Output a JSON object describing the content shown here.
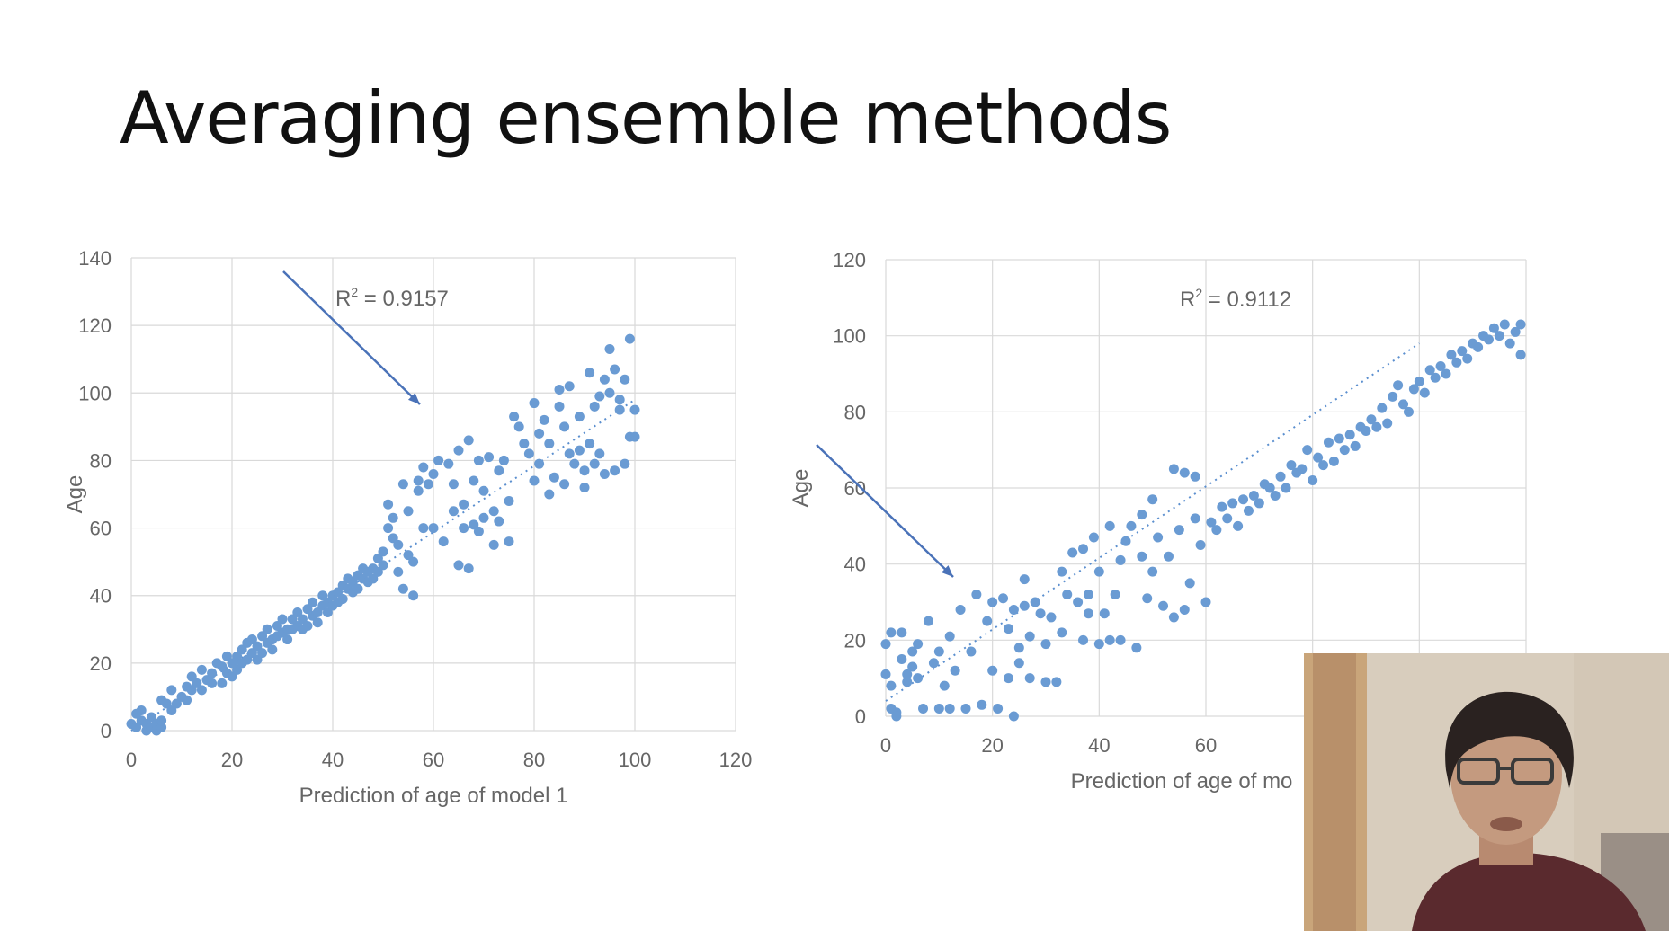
{
  "slide": {
    "title": "Averaging ensemble methods"
  },
  "chart_data": [
    {
      "type": "scatter",
      "xlabel": "Prediction of age of model 1",
      "ylabel": "Age",
      "xlim": [
        0,
        120
      ],
      "ylim": [
        0,
        140
      ],
      "xticks": [
        "0",
        "20",
        "40",
        "60",
        "80",
        "100",
        "120"
      ],
      "yticks": [
        "0",
        "20",
        "40",
        "60",
        "80",
        "100",
        "120",
        "140"
      ],
      "grid": true,
      "trendline": {
        "style": "dotted-linear",
        "x": [
          0,
          100
        ],
        "y": [
          0,
          98
        ]
      },
      "annotation": "R² = 0.9157",
      "points": [
        [
          0,
          2
        ],
        [
          1,
          5
        ],
        [
          1,
          1
        ],
        [
          2,
          3
        ],
        [
          2,
          6
        ],
        [
          3,
          0
        ],
        [
          3,
          2
        ],
        [
          4,
          1
        ],
        [
          4,
          4
        ],
        [
          5,
          2
        ],
        [
          5,
          0
        ],
        [
          6,
          1
        ],
        [
          6,
          3
        ],
        [
          6,
          9
        ],
        [
          7,
          8
        ],
        [
          8,
          6
        ],
        [
          8,
          12
        ],
        [
          9,
          8
        ],
        [
          10,
          10
        ],
        [
          11,
          9
        ],
        [
          11,
          13
        ],
        [
          12,
          12
        ],
        [
          12,
          16
        ],
        [
          13,
          14
        ],
        [
          14,
          18
        ],
        [
          14,
          12
        ],
        [
          15,
          15
        ],
        [
          16,
          17
        ],
        [
          16,
          14
        ],
        [
          17,
          20
        ],
        [
          18,
          19
        ],
        [
          18,
          14
        ],
        [
          19,
          17
        ],
        [
          19,
          22
        ],
        [
          20,
          20
        ],
        [
          20,
          16
        ],
        [
          21,
          22
        ],
        [
          21,
          18
        ],
        [
          22,
          24
        ],
        [
          22,
          20
        ],
        [
          23,
          26
        ],
        [
          23,
          21
        ],
        [
          24,
          23
        ],
        [
          24,
          27
        ],
        [
          25,
          25
        ],
        [
          25,
          21
        ],
        [
          26,
          28
        ],
        [
          26,
          23
        ],
        [
          27,
          26
        ],
        [
          27,
          30
        ],
        [
          28,
          27
        ],
        [
          28,
          24
        ],
        [
          29,
          31
        ],
        [
          29,
          28
        ],
        [
          30,
          29
        ],
        [
          30,
          33
        ],
        [
          31,
          30
        ],
        [
          31,
          27
        ],
        [
          32,
          33
        ],
        [
          32,
          30
        ],
        [
          33,
          31
        ],
        [
          33,
          35
        ],
        [
          34,
          33
        ],
        [
          34,
          30
        ],
        [
          35,
          36
        ],
        [
          35,
          31
        ],
        [
          36,
          34
        ],
        [
          36,
          38
        ],
        [
          37,
          35
        ],
        [
          37,
          32
        ],
        [
          38,
          37
        ],
        [
          38,
          40
        ],
        [
          39,
          38
        ],
        [
          39,
          35
        ],
        [
          40,
          40
        ],
        [
          40,
          37
        ],
        [
          41,
          41
        ],
        [
          41,
          38
        ],
        [
          42,
          43
        ],
        [
          42,
          39
        ],
        [
          43,
          42
        ],
        [
          43,
          45
        ],
        [
          44,
          44
        ],
        [
          44,
          41
        ],
        [
          45,
          46
        ],
        [
          45,
          42
        ],
        [
          46,
          45
        ],
        [
          46,
          48
        ],
        [
          47,
          47
        ],
        [
          47,
          44
        ],
        [
          48,
          48
        ],
        [
          48,
          45
        ],
        [
          49,
          51
        ],
        [
          49,
          47
        ],
        [
          50,
          53
        ],
        [
          50,
          49
        ],
        [
          51,
          67
        ],
        [
          51,
          60
        ],
        [
          52,
          57
        ],
        [
          52,
          63
        ],
        [
          53,
          55
        ],
        [
          53,
          47
        ],
        [
          54,
          42
        ],
        [
          54,
          73
        ],
        [
          55,
          65
        ],
        [
          55,
          52
        ],
        [
          56,
          40
        ],
        [
          56,
          50
        ],
        [
          57,
          71
        ],
        [
          57,
          74
        ],
        [
          58,
          60
        ],
        [
          58,
          78
        ],
        [
          59,
          73
        ],
        [
          60,
          76
        ],
        [
          60,
          60
        ],
        [
          61,
          80
        ],
        [
          62,
          56
        ],
        [
          63,
          79
        ],
        [
          64,
          73
        ],
        [
          64,
          65
        ],
        [
          65,
          83
        ],
        [
          65,
          49
        ],
        [
          66,
          60
        ],
        [
          66,
          67
        ],
        [
          67,
          48
        ],
        [
          67,
          86
        ],
        [
          68,
          61
        ],
        [
          68,
          74
        ],
        [
          69,
          80
        ],
        [
          69,
          59
        ],
        [
          70,
          71
        ],
        [
          70,
          63
        ],
        [
          71,
          81
        ],
        [
          72,
          55
        ],
        [
          72,
          65
        ],
        [
          73,
          77
        ],
        [
          73,
          62
        ],
        [
          74,
          80
        ],
        [
          75,
          56
        ],
        [
          75,
          68
        ],
        [
          76,
          93
        ],
        [
          77,
          90
        ],
        [
          78,
          85
        ],
        [
          79,
          82
        ],
        [
          80,
          74
        ],
        [
          80,
          97
        ],
        [
          81,
          79
        ],
        [
          81,
          88
        ],
        [
          82,
          92
        ],
        [
          83,
          85
        ],
        [
          83,
          70
        ],
        [
          84,
          75
        ],
        [
          85,
          101
        ],
        [
          85,
          96
        ],
        [
          86,
          90
        ],
        [
          86,
          73
        ],
        [
          87,
          82
        ],
        [
          87,
          102
        ],
        [
          88,
          79
        ],
        [
          89,
          93
        ],
        [
          89,
          83
        ],
        [
          90,
          77
        ],
        [
          90,
          72
        ],
        [
          91,
          85
        ],
        [
          91,
          106
        ],
        [
          92,
          96
        ],
        [
          92,
          79
        ],
        [
          93,
          99
        ],
        [
          93,
          82
        ],
        [
          94,
          104
        ],
        [
          94,
          76
        ],
        [
          95,
          100
        ],
        [
          95,
          113
        ],
        [
          96,
          77
        ],
        [
          96,
          107
        ],
        [
          97,
          95
        ],
        [
          97,
          98
        ],
        [
          98,
          104
        ],
        [
          98,
          79
        ],
        [
          99,
          116
        ],
        [
          99,
          87
        ],
        [
          100,
          95
        ],
        [
          100,
          87
        ]
      ]
    },
    {
      "type": "scatter",
      "xlabel": "Prediction of age of mo",
      "ylabel": "Age",
      "xlim": [
        0,
        120
      ],
      "ylim": [
        0,
        120
      ],
      "xticks": [
        "0",
        "20",
        "40",
        "60"
      ],
      "yticks": [
        "0",
        "20",
        "40",
        "60",
        "80",
        "100",
        "120"
      ],
      "grid": true,
      "trendline": {
        "style": "dotted-linear",
        "x": [
          0,
          100
        ],
        "y": [
          4,
          98
        ]
      },
      "annotation": "R² = 0.9112",
      "points": [
        [
          0,
          19
        ],
        [
          0,
          11
        ],
        [
          1,
          22
        ],
        [
          1,
          8
        ],
        [
          1,
          2
        ],
        [
          2,
          1
        ],
        [
          2,
          0
        ],
        [
          3,
          15
        ],
        [
          3,
          22
        ],
        [
          4,
          11
        ],
        [
          4,
          9
        ],
        [
          5,
          13
        ],
        [
          5,
          17
        ],
        [
          6,
          10
        ],
        [
          6,
          19
        ],
        [
          7,
          2
        ],
        [
          8,
          25
        ],
        [
          9,
          14
        ],
        [
          10,
          17
        ],
        [
          10,
          2
        ],
        [
          11,
          8
        ],
        [
          12,
          21
        ],
        [
          12,
          2
        ],
        [
          13,
          12
        ],
        [
          14,
          28
        ],
        [
          15,
          2
        ],
        [
          16,
          17
        ],
        [
          17,
          32
        ],
        [
          18,
          3
        ],
        [
          19,
          25
        ],
        [
          20,
          12
        ],
        [
          20,
          30
        ],
        [
          21,
          2
        ],
        [
          22,
          31
        ],
        [
          23,
          23
        ],
        [
          23,
          10
        ],
        [
          24,
          28
        ],
        [
          24,
          0
        ],
        [
          25,
          14
        ],
        [
          25,
          18
        ],
        [
          26,
          29
        ],
        [
          26,
          36
        ],
        [
          27,
          21
        ],
        [
          27,
          10
        ],
        [
          28,
          30
        ],
        [
          29,
          27
        ],
        [
          30,
          19
        ],
        [
          30,
          9
        ],
        [
          31,
          26
        ],
        [
          32,
          9
        ],
        [
          33,
          22
        ],
        [
          33,
          38
        ],
        [
          34,
          32
        ],
        [
          35,
          43
        ],
        [
          36,
          30
        ],
        [
          37,
          44
        ],
        [
          37,
          20
        ],
        [
          38,
          32
        ],
        [
          38,
          27
        ],
        [
          39,
          47
        ],
        [
          40,
          19
        ],
        [
          40,
          38
        ],
        [
          41,
          27
        ],
        [
          42,
          50
        ],
        [
          42,
          20
        ],
        [
          43,
          32
        ],
        [
          44,
          41
        ],
        [
          44,
          20
        ],
        [
          45,
          46
        ],
        [
          46,
          50
        ],
        [
          47,
          18
        ],
        [
          48,
          42
        ],
        [
          48,
          53
        ],
        [
          49,
          31
        ],
        [
          50,
          38
        ],
        [
          50,
          57
        ],
        [
          51,
          47
        ],
        [
          52,
          29
        ],
        [
          53,
          42
        ],
        [
          54,
          65
        ],
        [
          54,
          26
        ],
        [
          55,
          49
        ],
        [
          56,
          64
        ],
        [
          56,
          28
        ],
        [
          57,
          35
        ],
        [
          58,
          52
        ],
        [
          58,
          63
        ],
        [
          59,
          45
        ],
        [
          60,
          30
        ],
        [
          61,
          51
        ],
        [
          62,
          49
        ],
        [
          63,
          55
        ],
        [
          64,
          52
        ],
        [
          65,
          56
        ],
        [
          66,
          50
        ],
        [
          67,
          57
        ],
        [
          68,
          54
        ],
        [
          69,
          58
        ],
        [
          70,
          56
        ],
        [
          71,
          61
        ],
        [
          72,
          60
        ],
        [
          73,
          58
        ],
        [
          74,
          63
        ],
        [
          75,
          60
        ],
        [
          76,
          66
        ],
        [
          77,
          64
        ],
        [
          78,
          65
        ],
        [
          79,
          70
        ],
        [
          80,
          62
        ],
        [
          81,
          68
        ],
        [
          82,
          66
        ],
        [
          83,
          72
        ],
        [
          84,
          67
        ],
        [
          85,
          73
        ],
        [
          86,
          70
        ],
        [
          87,
          74
        ],
        [
          88,
          71
        ],
        [
          89,
          76
        ],
        [
          90,
          75
        ],
        [
          91,
          78
        ],
        [
          92,
          76
        ],
        [
          93,
          81
        ],
        [
          94,
          77
        ],
        [
          95,
          84
        ],
        [
          96,
          87
        ],
        [
          97,
          82
        ],
        [
          98,
          80
        ],
        [
          99,
          86
        ],
        [
          100,
          88
        ],
        [
          101,
          85
        ],
        [
          102,
          91
        ],
        [
          103,
          89
        ],
        [
          104,
          92
        ],
        [
          105,
          90
        ],
        [
          106,
          95
        ],
        [
          107,
          93
        ],
        [
          108,
          96
        ],
        [
          109,
          94
        ],
        [
          110,
          98
        ],
        [
          111,
          97
        ],
        [
          112,
          100
        ],
        [
          113,
          99
        ],
        [
          114,
          102
        ],
        [
          115,
          100
        ],
        [
          116,
          103
        ],
        [
          117,
          98
        ],
        [
          118,
          101
        ],
        [
          119,
          95
        ],
        [
          119,
          103
        ]
      ]
    }
  ],
  "webcam": {
    "content": "presenter video feed"
  }
}
